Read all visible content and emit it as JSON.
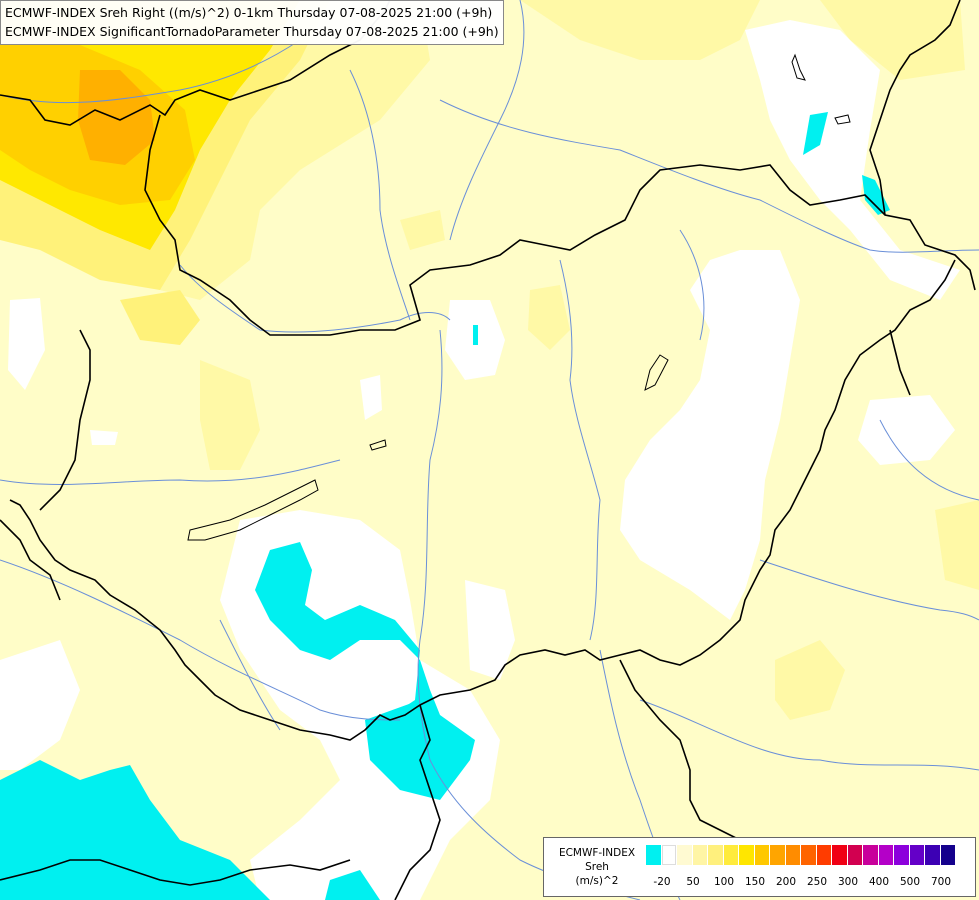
{
  "header": {
    "line1": "ECMWF-INDEX Sreh Right ((m/s)^2) 0-1km Thursday 07-08-2025 21:00 (+9h)",
    "line2": "ECMWF-INDEX SignificantTornadoParameter Thursday 07-08-2025 21:00 (+9h)"
  },
  "legend": {
    "title_line1": "ECMWF-INDEX",
    "title_line2": "Sreh",
    "title_line3": "(m/s)^2",
    "colors": [
      "#00f0f0",
      "#ffffff",
      "#fffad2",
      "#fff5a5",
      "#fff07d",
      "#ffeb3c",
      "#ffe600",
      "#ffc800",
      "#ffa500",
      "#ff8c00",
      "#ff6400",
      "#ff3c00",
      "#f00014",
      "#d20050",
      "#c8009b",
      "#b400c8",
      "#8c00dc",
      "#6400c8",
      "#3c00b4",
      "#14008c"
    ],
    "ticks": [
      "-20",
      "50",
      "100",
      "150",
      "200",
      "250",
      "300",
      "400",
      "500",
      "700"
    ]
  },
  "colors": {
    "background": "#fffdc8",
    "pale_yellow": "#fff9a6",
    "yellow": "#fff27a",
    "deep_yellow": "#ffe800",
    "gold": "#ffd000",
    "orange": "#ffb000",
    "cyan": "#00f0f0",
    "white": "#ffffff",
    "border": "#000000",
    "river": "#6a8fd8"
  }
}
